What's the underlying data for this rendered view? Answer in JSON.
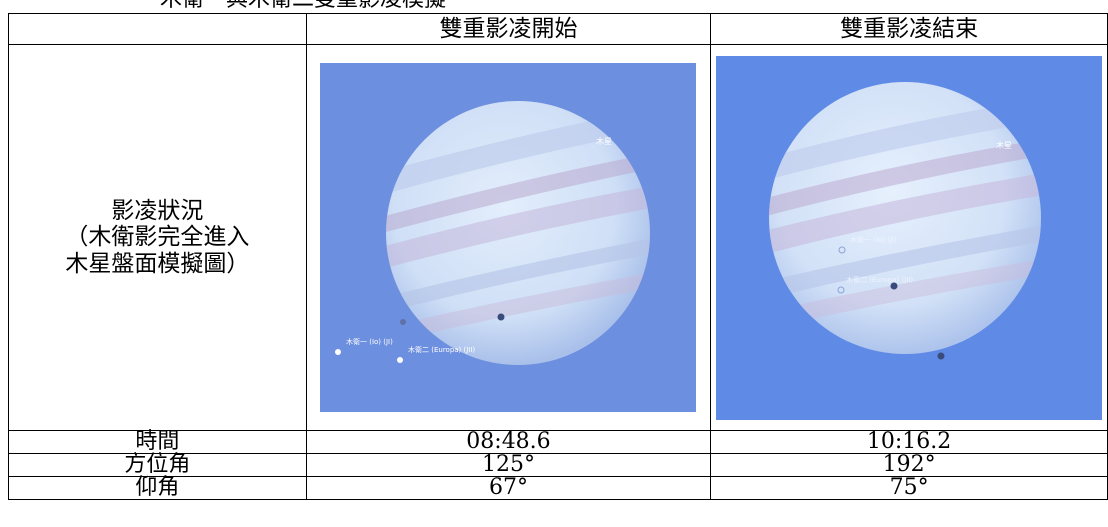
{
  "caption": "木衛一與木衛二雙重影凌模擬",
  "header": {
    "col1": "",
    "col2": "雙重影凌開始",
    "col3": "雙重影凌結束"
  },
  "row_image": {
    "label_lines": [
      "影凌狀況",
      "（木衛影完全進入",
      "木星盤面模擬圖）"
    ],
    "start_image": {
      "jupiter_label": "木星",
      "io_label": "木衛一 (Io)  (JI)",
      "europa_label": "木衛二 (Europa)  (JII)"
    },
    "end_image": {
      "jupiter_label": "木星",
      "io_label": "木衛一 (Io)  (JI)",
      "europa_label": "木衛二 (Europa)  (JII)"
    }
  },
  "rows": [
    {
      "label": "時間",
      "start": "08:48.6",
      "end": "10:16.2"
    },
    {
      "label": "方位角",
      "start": "125°",
      "end": "192°"
    },
    {
      "label": "仰角",
      "start": "67°",
      "end": "75°"
    }
  ],
  "colors": {
    "sky": "#6d8fdf",
    "sky_end": "#5f8be6",
    "jupiter": "#d8e8fb"
  }
}
